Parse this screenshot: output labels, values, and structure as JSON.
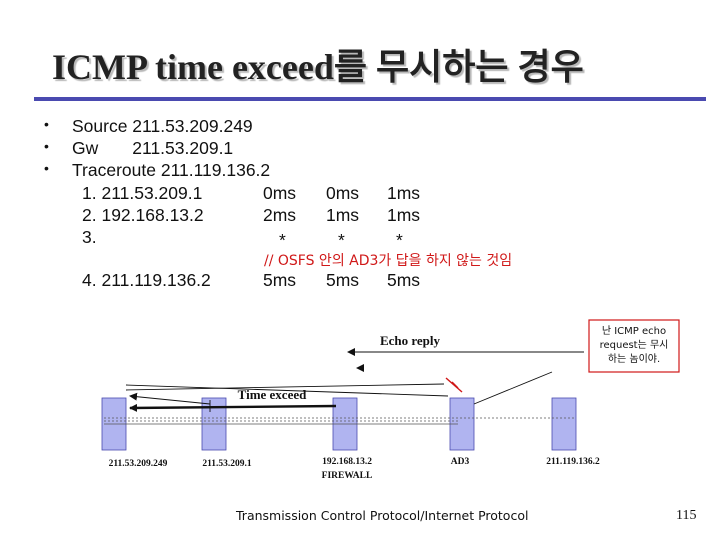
{
  "title": "ICMP time exceed를 무시하는 경우",
  "bullets": [
    {
      "text": "Source 211.53.209.249"
    },
    {
      "text": "Gw       211.53.209.1"
    },
    {
      "text": "Traceroute 211.119.136.2"
    }
  ],
  "trace_rows": [
    {
      "label": "1. 211.53.209.1",
      "t1": "0ms",
      "t2": "0ms",
      "t3": "1ms"
    },
    {
      "label": "2. 192.168.13.2",
      "t1": "2ms",
      "t2": "1ms",
      "t3": "1ms"
    },
    {
      "label": "3.",
      "t1": "*",
      "t2": "*",
      "t3": "*"
    },
    {
      "label": "4. 211.119.136.2",
      "t1": "5ms",
      "t2": "5ms",
      "t3": "5ms"
    }
  ],
  "note": "// OSFS 안의 AD3가 답을 하지 않는 것임",
  "diagram": {
    "echo_reply": "Echo reply",
    "time_exceed": "Time exceed",
    "callout_lines": [
      "난 ICMP echo",
      "request는 무시",
      "하는 놈이야."
    ],
    "nodes": [
      {
        "label": "211.53.209.249"
      },
      {
        "label": "211.53.209.1"
      },
      {
        "label": "192.168.13.2",
        "sub": "FIREWALL"
      },
      {
        "label": "AD3"
      },
      {
        "label": "211.119.136.2"
      }
    ],
    "colors": {
      "node_fill": "#b0b4f0",
      "callout_border": "#d01818",
      "block_mark": "#d01818",
      "accent": "#4a4ab0"
    }
  },
  "footer": "Transmission Control Protocol/Internet Protocol",
  "page_number": "115"
}
